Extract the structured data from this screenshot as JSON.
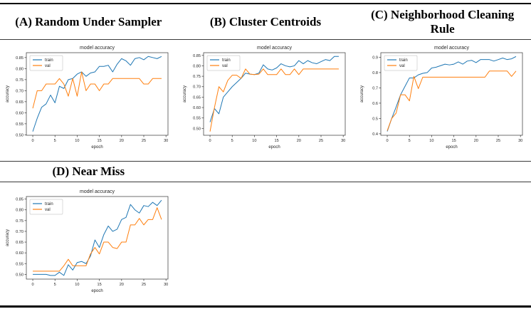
{
  "figure": {
    "panel_titles": {
      "a": "(A) Random Under Sampler",
      "b": "(B) Cluster Centroids",
      "c": "(C) Neighborhood Cleaning Rule",
      "d": "(D) Near Miss"
    }
  },
  "colors": {
    "train": "#1f77b4",
    "val": "#ff7f0e",
    "spine": "#333333",
    "rule": "#000000"
  },
  "chart_data": [
    {
      "type": "line",
      "panel": "A",
      "panel_title": "(A) Random Under Sampler",
      "title": "model accuracy",
      "xlabel": "epoch",
      "ylabel": "accuracy",
      "x": [
        0,
        1,
        2,
        3,
        4,
        5,
        6,
        7,
        8,
        9,
        10,
        11,
        12,
        13,
        14,
        15,
        16,
        17,
        18,
        19,
        20,
        21,
        22,
        23,
        24,
        25,
        26,
        27,
        28,
        29
      ],
      "xlim": [
        -1.45,
        30.45
      ],
      "ylim": [
        0.498,
        0.872
      ],
      "xticks": [
        0,
        5,
        10,
        15,
        20,
        25,
        30
      ],
      "yticks": [
        0.5,
        0.55,
        0.6,
        0.65,
        0.7,
        0.75,
        0.8,
        0.85
      ],
      "ytick_labels": [
        "0.50",
        "0.55",
        "0.60",
        "0.65",
        "0.70",
        "0.75",
        "0.80",
        "0.85"
      ],
      "legend_position": "upper left",
      "grid": false,
      "series": [
        {
          "name": "train",
          "color": "#1f77b4",
          "values": [
            0.515,
            0.575,
            0.625,
            0.64,
            0.68,
            0.645,
            0.72,
            0.71,
            0.75,
            0.755,
            0.775,
            0.785,
            0.765,
            0.78,
            0.785,
            0.81,
            0.81,
            0.815,
            0.785,
            0.82,
            0.845,
            0.835,
            0.815,
            0.845,
            0.85,
            0.84,
            0.855,
            0.85,
            0.845,
            0.855
          ]
        },
        {
          "name": "val",
          "color": "#ff7f0e",
          "values": [
            0.62,
            0.7,
            0.7,
            0.73,
            0.73,
            0.73,
            0.755,
            0.73,
            0.675,
            0.755,
            0.675,
            0.785,
            0.7,
            0.73,
            0.73,
            0.7,
            0.73,
            0.73,
            0.755,
            0.755,
            0.755,
            0.755,
            0.755,
            0.755,
            0.755,
            0.73,
            0.73,
            0.755,
            0.755,
            0.755
          ]
        }
      ]
    },
    {
      "type": "line",
      "panel": "B",
      "panel_title": "(B) Cluster Centroids",
      "title": "model accuracy",
      "xlabel": "epoch",
      "ylabel": "accuracy",
      "x": [
        0,
        1,
        2,
        3,
        4,
        5,
        6,
        7,
        8,
        9,
        10,
        11,
        12,
        13,
        14,
        15,
        16,
        17,
        18,
        19,
        20,
        21,
        22,
        23,
        24,
        25,
        26,
        27,
        28,
        29
      ],
      "xlim": [
        -1.45,
        30.45
      ],
      "ylim": [
        0.467,
        0.863
      ],
      "xticks": [
        0,
        5,
        10,
        15,
        20,
        25,
        30
      ],
      "yticks": [
        0.5,
        0.55,
        0.6,
        0.65,
        0.7,
        0.75,
        0.8,
        0.85
      ],
      "ytick_labels": [
        "0.50",
        "0.55",
        "0.60",
        "0.65",
        "0.70",
        "0.75",
        "0.80",
        "0.85"
      ],
      "legend_position": "upper left",
      "grid": false,
      "series": [
        {
          "name": "train",
          "color": "#1f77b4",
          "values": [
            0.53,
            0.595,
            0.57,
            0.65,
            0.675,
            0.7,
            0.72,
            0.74,
            0.765,
            0.76,
            0.758,
            0.765,
            0.805,
            0.785,
            0.78,
            0.79,
            0.81,
            0.8,
            0.795,
            0.8,
            0.825,
            0.81,
            0.825,
            0.815,
            0.81,
            0.82,
            0.83,
            0.825,
            0.845,
            0.845
          ]
        },
        {
          "name": "val",
          "color": "#ff7f0e",
          "values": [
            0.485,
            0.6,
            0.7,
            0.675,
            0.73,
            0.755,
            0.755,
            0.74,
            0.785,
            0.76,
            0.758,
            0.76,
            0.785,
            0.758,
            0.758,
            0.758,
            0.785,
            0.758,
            0.758,
            0.785,
            0.758,
            0.785,
            0.785,
            0.785,
            0.785,
            0.785,
            0.785,
            0.785,
            0.785,
            0.785
          ]
        }
      ]
    },
    {
      "type": "line",
      "panel": "C",
      "panel_title": "(C) Neighborhood Cleaning Rule",
      "title": "model accuracy",
      "xlabel": "epoch",
      "ylabel": "accuracy",
      "x": [
        0,
        1,
        2,
        3,
        4,
        5,
        6,
        7,
        8,
        9,
        10,
        11,
        12,
        13,
        14,
        15,
        16,
        17,
        18,
        19,
        20,
        21,
        22,
        23,
        24,
        25,
        26,
        27,
        28,
        29
      ],
      "xlim": [
        -1.45,
        30.45
      ],
      "ylim": [
        0.39,
        0.93
      ],
      "xticks": [
        0,
        5,
        10,
        15,
        20,
        25,
        30
      ],
      "yticks": [
        0.4,
        0.5,
        0.6,
        0.7,
        0.8,
        0.9
      ],
      "ytick_labels": [
        "0.4",
        "0.5",
        "0.6",
        "0.7",
        "0.8",
        "0.9"
      ],
      "legend_position": "upper left",
      "grid": false,
      "series": [
        {
          "name": "train",
          "color": "#1f77b4",
          "values": [
            0.415,
            0.5,
            0.575,
            0.655,
            0.71,
            0.765,
            0.765,
            0.785,
            0.795,
            0.8,
            0.83,
            0.835,
            0.845,
            0.855,
            0.85,
            0.855,
            0.87,
            0.855,
            0.875,
            0.88,
            0.865,
            0.885,
            0.885,
            0.885,
            0.875,
            0.885,
            0.895,
            0.885,
            0.89,
            0.905
          ]
        },
        {
          "name": "val",
          "color": "#ff7f0e",
          "values": [
            0.42,
            0.5,
            0.535,
            0.655,
            0.655,
            0.615,
            0.775,
            0.695,
            0.77,
            0.77,
            0.77,
            0.77,
            0.77,
            0.77,
            0.77,
            0.77,
            0.77,
            0.77,
            0.77,
            0.77,
            0.77,
            0.77,
            0.77,
            0.81,
            0.81,
            0.81,
            0.81,
            0.81,
            0.775,
            0.81
          ]
        }
      ]
    },
    {
      "type": "line",
      "panel": "D",
      "panel_title": "(D) Near Miss",
      "title": "model accuracy",
      "xlabel": "epoch",
      "ylabel": "accuracy",
      "x": [
        0,
        1,
        2,
        3,
        4,
        5,
        6,
        7,
        8,
        9,
        10,
        11,
        12,
        13,
        14,
        15,
        16,
        17,
        18,
        19,
        20,
        21,
        22,
        23,
        24,
        25,
        26,
        27,
        28,
        29
      ],
      "xlim": [
        -1.45,
        30.45
      ],
      "ylim": [
        0.478,
        0.862
      ],
      "xticks": [
        0,
        5,
        10,
        15,
        20,
        25,
        30
      ],
      "yticks": [
        0.5,
        0.55,
        0.6,
        0.65,
        0.7,
        0.75,
        0.8,
        0.85
      ],
      "ytick_labels": [
        "0.50",
        "0.55",
        "0.60",
        "0.65",
        "0.70",
        "0.75",
        "0.80",
        "0.85"
      ],
      "legend_position": "upper left",
      "grid": false,
      "series": [
        {
          "name": "train",
          "color": "#1f77b4",
          "values": [
            0.5,
            0.5,
            0.5,
            0.5,
            0.495,
            0.495,
            0.51,
            0.495,
            0.545,
            0.52,
            0.555,
            0.56,
            0.55,
            0.585,
            0.66,
            0.625,
            0.685,
            0.725,
            0.7,
            0.71,
            0.755,
            0.765,
            0.825,
            0.8,
            0.785,
            0.82,
            0.815,
            0.835,
            0.82,
            0.845
          ]
        },
        {
          "name": "val",
          "color": "#ff7f0e",
          "values": [
            0.515,
            0.515,
            0.515,
            0.515,
            0.515,
            0.515,
            0.515,
            0.54,
            0.57,
            0.54,
            0.54,
            0.54,
            0.54,
            0.595,
            0.625,
            0.595,
            0.65,
            0.65,
            0.625,
            0.62,
            0.65,
            0.65,
            0.73,
            0.73,
            0.76,
            0.73,
            0.755,
            0.755,
            0.81,
            0.755
          ]
        }
      ]
    }
  ]
}
